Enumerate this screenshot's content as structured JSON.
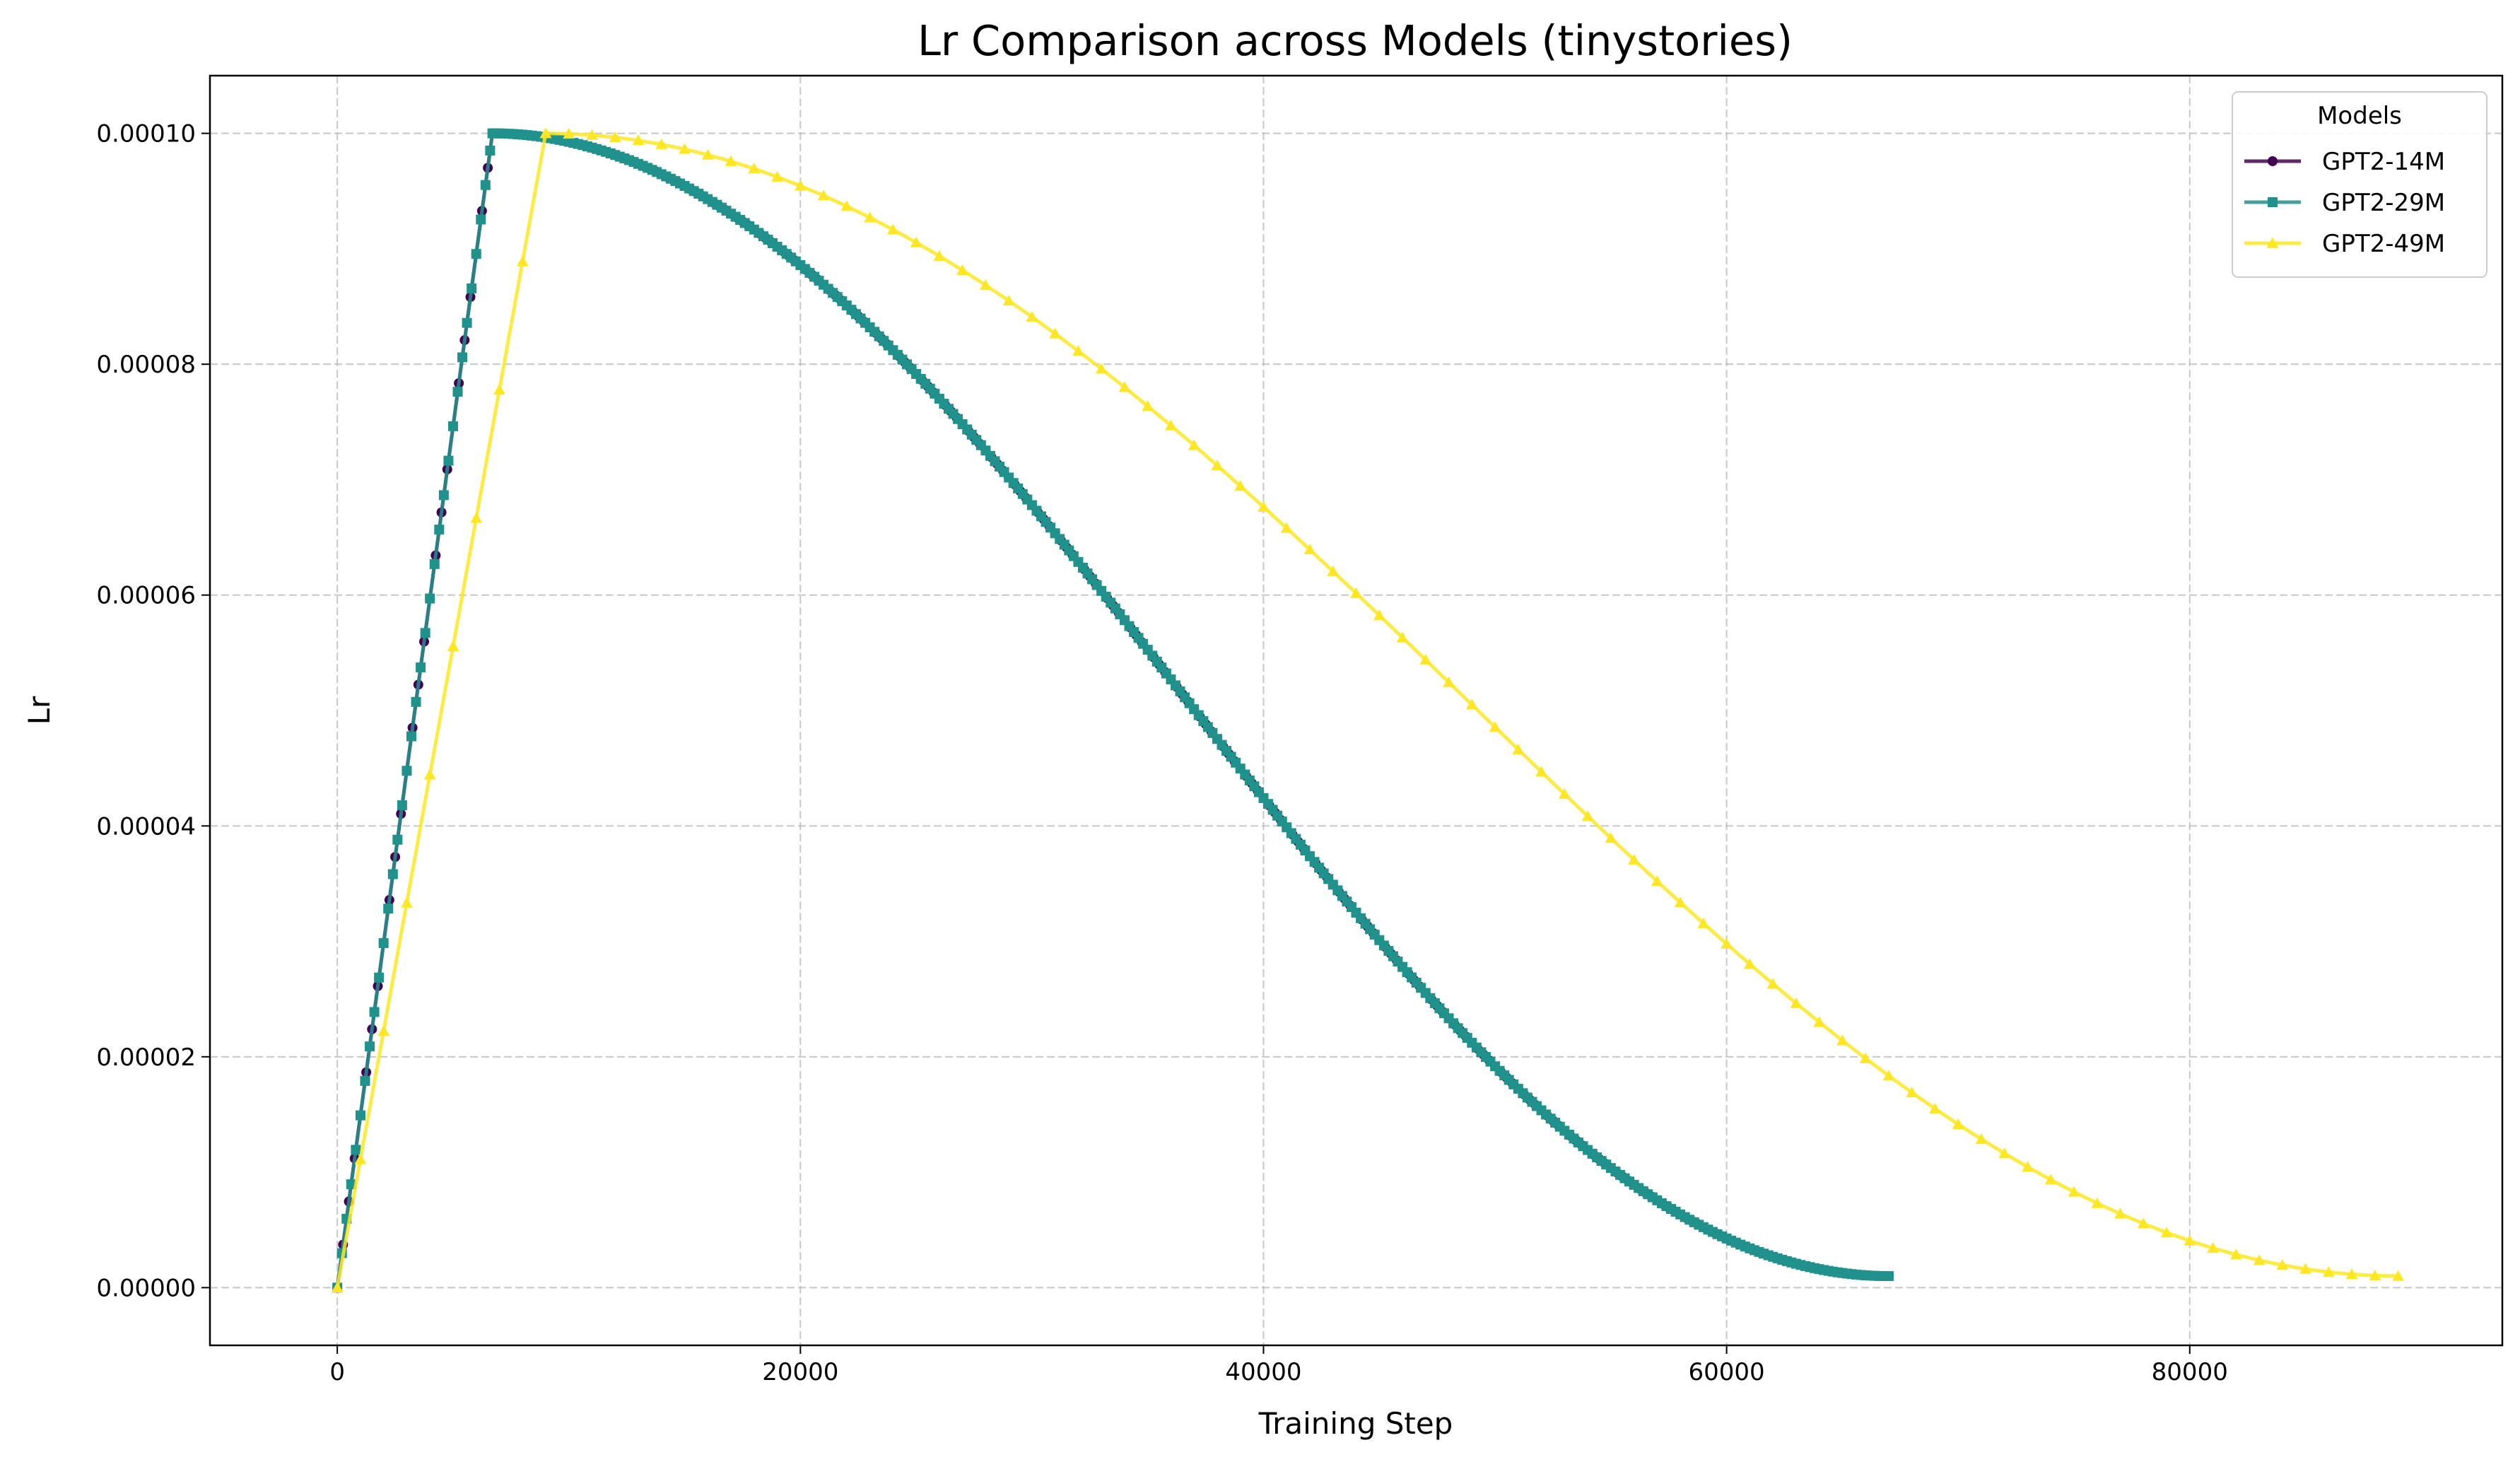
{
  "chart_data": {
    "type": "line",
    "title": "Lr Comparison across Models (tinystories)",
    "xlabel": "Training Step",
    "ylabel": "Lr",
    "xlim": [
      -5500,
      93500
    ],
    "ylim": [
      -5e-06,
      0.000105
    ],
    "xticks": [
      0,
      20000,
      40000,
      60000,
      80000
    ],
    "xtick_labels": [
      "0",
      "20000",
      "40000",
      "60000",
      "80000"
    ],
    "yticks": [
      0,
      2e-05,
      4e-05,
      6e-05,
      8e-05,
      0.0001
    ],
    "ytick_labels": [
      "0.00000",
      "0.00002",
      "0.00004",
      "0.00006",
      "0.00008",
      "0.00010"
    ],
    "grid": true,
    "legend": {
      "title": "Models",
      "placement": "top-right"
    },
    "series": [
      {
        "name": "GPT2-14M",
        "color": "#440154",
        "marker": "circle",
        "schedule": "linear-warmup-cosine-decay",
        "warmup_end_step": 6700,
        "final_step": 67000,
        "peak_lr": 0.0001,
        "min_lr": 1e-06,
        "marker_every": 250
      },
      {
        "name": "GPT2-29M",
        "color": "#21918c",
        "marker": "square",
        "schedule": "linear-warmup-cosine-decay",
        "warmup_end_step": 6700,
        "final_step": 67000,
        "peak_lr": 0.0001,
        "min_lr": 1e-06,
        "marker_every": 200
      },
      {
        "name": "GPT2-49M",
        "color": "#fde725",
        "marker": "triangle",
        "schedule": "linear-warmup-cosine-decay",
        "warmup_end_step": 9000,
        "final_step": 89000,
        "peak_lr": 0.0001,
        "min_lr": 1e-06,
        "marker_every": 1000
      }
    ]
  }
}
